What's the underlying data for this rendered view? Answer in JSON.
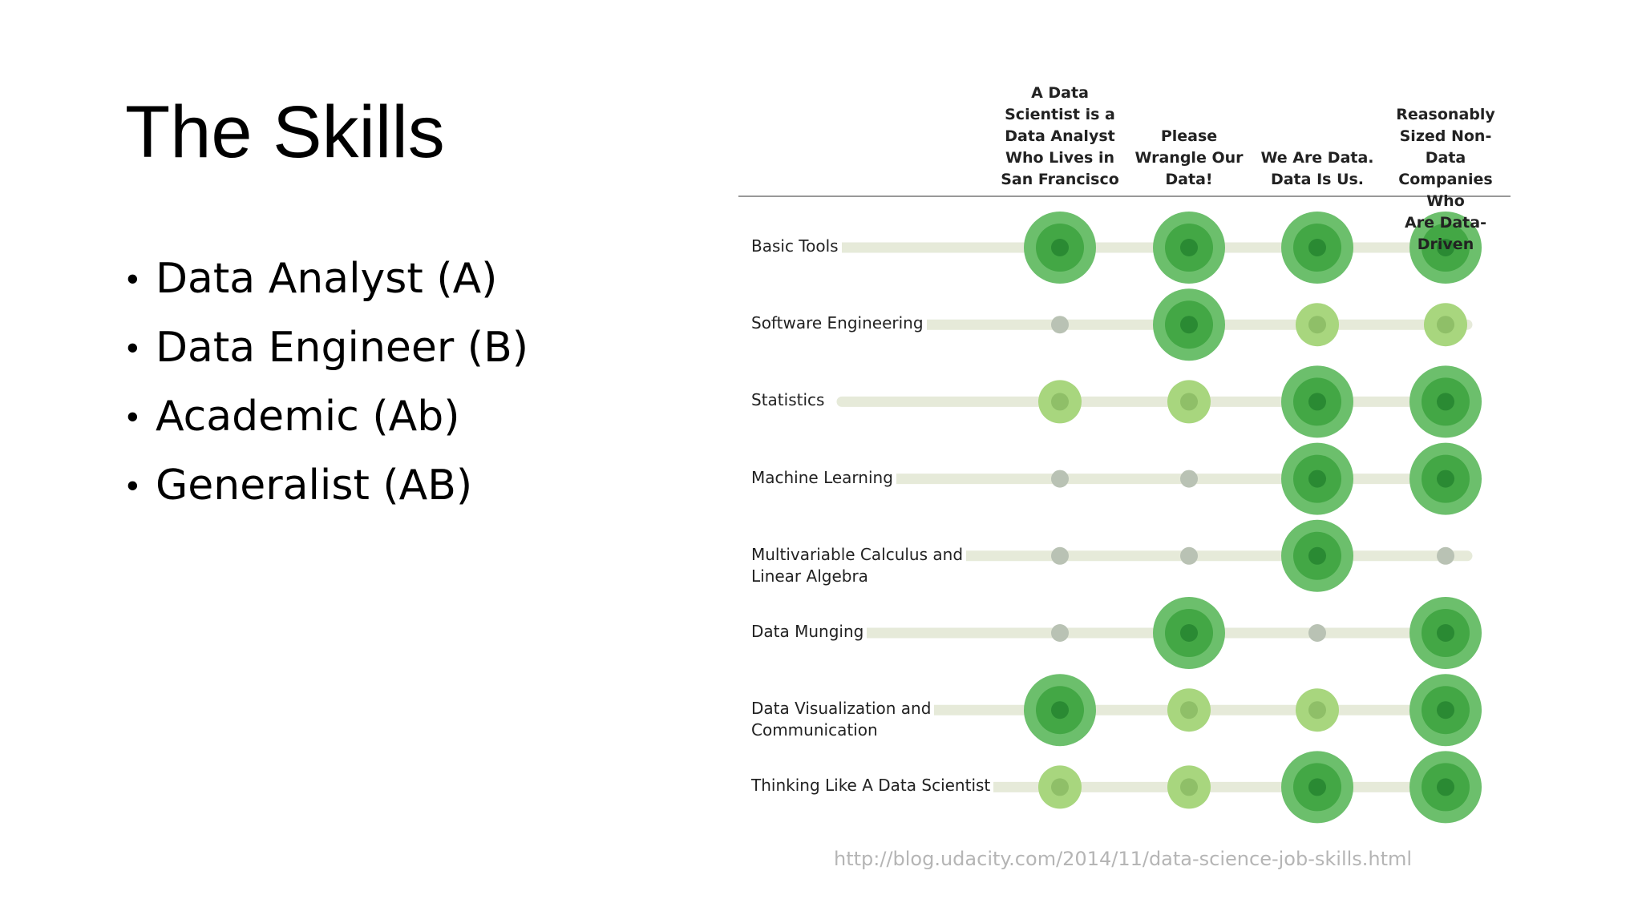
{
  "slide": {
    "title": "The Skills",
    "bullets": [
      "Data Analyst (A)",
      "Data Engineer (B)",
      "Academic (Ab)",
      "Generalist (AB)"
    ],
    "bullet_symbol": "•",
    "source_url": "http://blog.udacity.com/2014/11/data-science-job-skills.html"
  },
  "chart_data": {
    "type": "table",
    "columns": [
      "A Data\nScientist is a\nData Analyst\nWho Lives in\nSan Francisco",
      "Please\nWrangle Our\nData!",
      "We Are Data.\nData Is Us.",
      "Reasonably\nSized Non-Data\nCompanies Who\nAre Data-Driven"
    ],
    "rows": [
      {
        "label": "Basic Tools",
        "values": [
          3,
          3,
          3,
          3
        ]
      },
      {
        "label": "Software Engineering",
        "values": [
          1,
          3,
          2,
          2
        ]
      },
      {
        "label": "Statistics",
        "values": [
          2,
          2,
          3,
          3
        ]
      },
      {
        "label": "Machine Learning",
        "values": [
          1,
          1,
          3,
          3
        ]
      },
      {
        "label": "Multivariable Calculus and\nLinear Algebra",
        "values": [
          1,
          1,
          3,
          1
        ]
      },
      {
        "label": "Data Munging",
        "values": [
          1,
          3,
          1,
          3
        ]
      },
      {
        "label": "Data Visualization and\nCommunication",
        "values": [
          3,
          2,
          2,
          3
        ]
      },
      {
        "label": "Thinking Like A Data Scientist",
        "values": [
          2,
          2,
          3,
          3
        ]
      }
    ],
    "scale": {
      "1": "low",
      "2": "medium",
      "3": "high"
    },
    "colors": {
      "track": "#e6ead9",
      "low": "#b9c2b4",
      "medium_outer": "#a8d67e",
      "medium_inner": "#8fbf68",
      "high_outer": "#6cbf6c",
      "high_mid": "#43a745",
      "high_inner": "#2a8a33",
      "header_rule": "#999999"
    }
  }
}
